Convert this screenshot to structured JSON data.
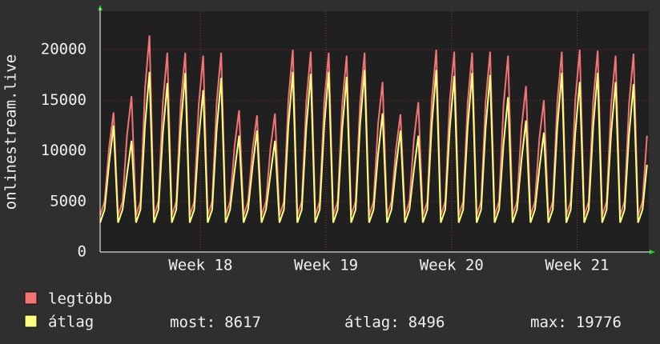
{
  "chart_data": {
    "type": "line",
    "y_label": "onlinestream.live",
    "x": [
      0,
      0.25,
      0.5,
      0.75,
      1,
      1.25,
      1.5,
      1.75,
      2,
      2.25,
      2.5,
      2.75,
      3,
      3.25,
      3.5,
      3.75,
      4,
      4.25,
      4.5,
      4.75,
      5,
      5.25,
      5.5,
      5.75,
      6,
      6.25,
      6.5,
      6.75,
      7,
      7.25,
      7.5,
      7.75,
      8,
      8.25,
      8.5,
      8.75,
      9,
      9.25,
      9.5,
      9.75,
      10,
      10.25,
      10.5,
      10.75,
      11,
      11.25,
      11.5,
      11.75,
      12,
      12.25,
      12.5,
      12.75,
      13,
      13.25,
      13.5,
      13.75,
      14,
      14.25,
      14.5,
      14.75,
      15,
      15.25,
      15.5,
      15.75,
      16,
      16.25,
      16.5,
      16.75,
      17,
      17.25,
      17.5,
      17.75,
      18,
      18.25,
      18.5,
      18.75,
      19,
      19.25,
      19.5,
      19.75,
      20,
      20.25,
      20.5,
      20.75,
      21,
      21.25,
      21.5,
      21.75,
      22,
      22.25,
      22.5,
      22.75,
      23,
      23.25,
      23.5,
      23.75,
      24,
      24.25,
      24.5,
      24.75,
      25,
      25.25,
      25.5,
      25.75,
      26,
      26.25,
      26.5,
      26.75,
      27,
      27.25,
      27.5,
      27.75,
      28,
      28.25,
      28.5,
      28.75,
      29,
      29.25,
      29.5,
      29.75,
      30,
      30.25,
      30.5
    ],
    "series": [
      {
        "name": "legtöbb",
        "color": "#f27474",
        "values": [
          3600,
          5000,
          10350,
          13800,
          3600,
          5000,
          11550,
          15400,
          3600,
          5000,
          16050,
          21400,
          3600,
          5000,
          14775,
          19700,
          3600,
          5000,
          14775,
          19700,
          3600,
          5000,
          14550,
          19400,
          3600,
          5000,
          14775,
          19700,
          3600,
          5000,
          10500,
          14000,
          3600,
          5000,
          10125,
          13500,
          3600,
          5000,
          10275,
          13700,
          3600,
          5000,
          15000,
          20000,
          3600,
          5000,
          14850,
          19800,
          3600,
          5000,
          14775,
          19700,
          3600,
          5000,
          14550,
          19400,
          3600,
          5000,
          14775,
          19700,
          3600,
          5000,
          12600,
          16800,
          3600,
          5000,
          10200,
          13600,
          3600,
          5000,
          11100,
          14800,
          3600,
          5000,
          15000,
          20000,
          3600,
          5000,
          14850,
          19800,
          3600,
          5000,
          14775,
          19700,
          3600,
          5000,
          14850,
          19800,
          3600,
          5000,
          14550,
          19400,
          3600,
          5000,
          12300,
          16400,
          3600,
          5000,
          11250,
          15000,
          3600,
          5000,
          14850,
          19800,
          3600,
          5000,
          15000,
          20000,
          3600,
          5000,
          14925,
          19900,
          3600,
          5000,
          14550,
          19400,
          3600,
          5000,
          14700,
          19600,
          3600,
          5000,
          11500
        ]
      },
      {
        "name": "átlag",
        "color": "#ffff80",
        "values": [
          2900,
          4200,
          8750,
          12500,
          2900,
          4200,
          7700,
          11000,
          2900,
          4200,
          12460,
          17800,
          2900,
          4200,
          11690,
          16700,
          2900,
          4200,
          12390,
          17700,
          2900,
          4200,
          11200,
          16000,
          2900,
          4200,
          12040,
          17200,
          2900,
          4200,
          8050,
          11500,
          2900,
          4200,
          8400,
          12000,
          2900,
          4200,
          7700,
          11000,
          2900,
          4200,
          12460,
          17800,
          2900,
          4200,
          12320,
          17600,
          2900,
          4200,
          12460,
          17800,
          2900,
          4200,
          12110,
          17300,
          2900,
          4200,
          12600,
          18000,
          2900,
          4200,
          9590,
          13700,
          2900,
          4200,
          8400,
          12000,
          2900,
          4200,
          8050,
          11500,
          2900,
          4200,
          12600,
          18000,
          2900,
          4200,
          12180,
          17400,
          2900,
          4200,
          12390,
          17700,
          2900,
          4200,
          12250,
          17500,
          2900,
          4200,
          10710,
          15300,
          2900,
          4200,
          9100,
          13000,
          2900,
          4200,
          8260,
          11800,
          2900,
          4200,
          12390,
          17700,
          2900,
          4200,
          11760,
          16800,
          2900,
          4200,
          12390,
          17700,
          2900,
          4200,
          11760,
          16800,
          2900,
          4200,
          11620,
          16600,
          2900,
          4200,
          8617
        ]
      }
    ],
    "xlim": [
      0,
      30.6
    ],
    "xticks": [
      {
        "value": 5.6,
        "label": "Week 18"
      },
      {
        "value": 12.6,
        "label": "Week 19"
      },
      {
        "value": 19.6,
        "label": "Week 20"
      },
      {
        "value": 26.6,
        "label": "Week 21"
      }
    ],
    "ylim": [
      0,
      23800
    ],
    "yticks": [
      0,
      5000,
      10000,
      15000,
      20000
    ],
    "grid": true,
    "stats": [
      {
        "label": "most:",
        "value": 8617
      },
      {
        "label": "átlag:",
        "value": 8496
      },
      {
        "label": "max:",
        "value": 19776
      }
    ]
  }
}
